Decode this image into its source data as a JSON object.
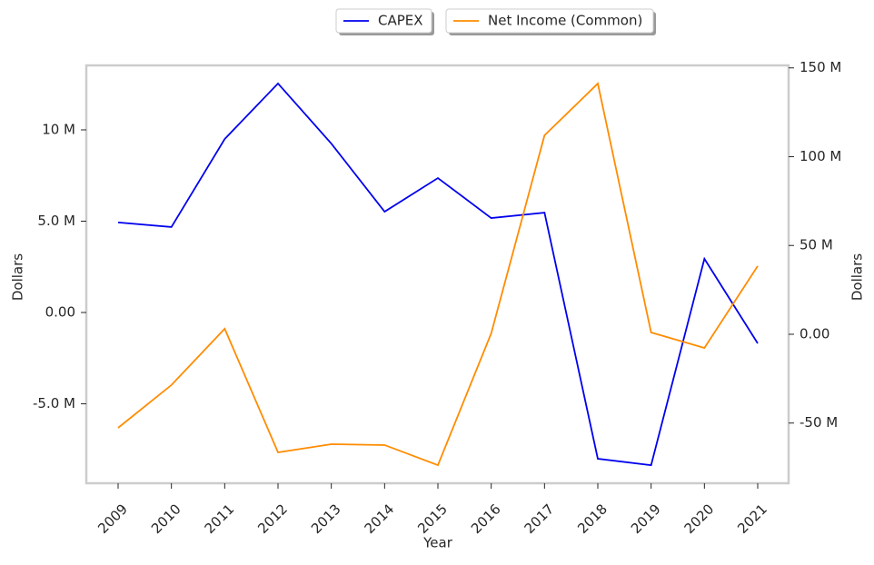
{
  "chart_data": {
    "type": "line",
    "categories": [
      "2009",
      "2010",
      "2011",
      "2012",
      "2013",
      "2014",
      "2015",
      "2016",
      "2017",
      "2018",
      "2019",
      "2020",
      "2021"
    ],
    "x_label": "Year",
    "y_label": "Dollars",
    "y2_label": "Dollars",
    "series": [
      {
        "name": "CAPEX",
        "color": "#0000ee",
        "values": [
          4930000,
          4680000,
          9500000,
          12540000,
          9250000,
          5520000,
          7360000,
          5170000,
          5470000,
          -8010000,
          -8360000,
          2940000,
          -1690000
        ]
      },
      {
        "name": "Net Income (Common)",
        "color": "#ff8c00",
        "axis": "y2",
        "values": [
          -52700000,
          -28600000,
          3100000,
          -66500000,
          -61900000,
          -62400000,
          -73700000,
          500000,
          112000000,
          141200000,
          1000000,
          -7700000,
          38400000
        ]
      }
    ],
    "ylim": [
      -9350000,
      13530000
    ],
    "yticks": [
      {
        "value": -5000000,
        "label": "-5.0 M"
      },
      {
        "value": 0,
        "label": "0.00"
      },
      {
        "value": 5000000,
        "label": "5.0 M"
      },
      {
        "value": 10000000,
        "label": "10 M"
      }
    ],
    "y2lim": [
      -83900000,
      151400000
    ],
    "y2ticks": [
      {
        "value": -50000000,
        "label": "-50 M"
      },
      {
        "value": 0,
        "label": "0.00"
      },
      {
        "value": 50000000,
        "label": "50 M"
      },
      {
        "value": 100000000,
        "label": "100 M"
      },
      {
        "value": 150000000,
        "label": "150 M"
      }
    ],
    "grid": false
  }
}
